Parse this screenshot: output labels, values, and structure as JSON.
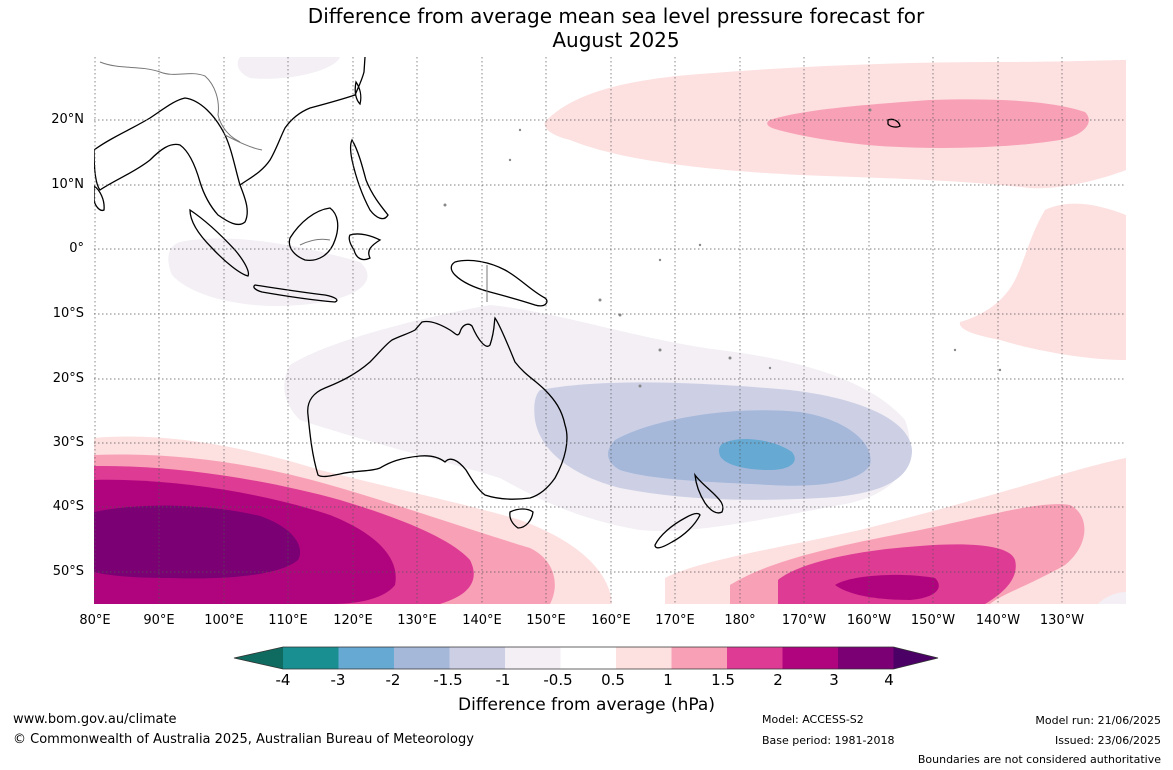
{
  "title": {
    "line1": "Difference from average mean sea level pressure forecast for",
    "line2": "August 2025"
  },
  "lat_labels": [
    "20°N",
    "10°N",
    "0°",
    "10°S",
    "20°S",
    "30°S",
    "40°S",
    "50°S"
  ],
  "lon_labels": [
    "80°E",
    "90°E",
    "100°E",
    "110°E",
    "120°E",
    "130°E",
    "140°E",
    "150°E",
    "160°E",
    "170°E",
    "180°",
    "170°W",
    "160°W",
    "150°W",
    "140°W",
    "130°W"
  ],
  "colorbar": {
    "ticks": [
      "-4",
      "-3",
      "-2",
      "-1.5",
      "-1",
      "-0.5",
      "0.5",
      "1",
      "1.5",
      "2",
      "3",
      "4"
    ],
    "colors": [
      "#0f6b5f",
      "#1a8f91",
      "#66a9d2",
      "#a5b8da",
      "#cdd0e5",
      "#f3eff5",
      "#ffffff",
      "#fde0e0",
      "#f8a0b6",
      "#de3b94",
      "#b0047e",
      "#7a0074",
      "#4b0066"
    ],
    "label": "Difference from average (hPa)"
  },
  "footer": {
    "website": "www.bom.gov.au/climate",
    "copyright": "© Commonwealth of Australia 2025, Australian Bureau of Meteorology",
    "model": "Model: ACCESS-S2",
    "base_period": "Base period: 1981-2018",
    "model_run": "Model run: 21/06/2025",
    "issued": "Issued: 23/06/2025",
    "disclaimer": "Boundaries are not considered authoritative"
  }
}
